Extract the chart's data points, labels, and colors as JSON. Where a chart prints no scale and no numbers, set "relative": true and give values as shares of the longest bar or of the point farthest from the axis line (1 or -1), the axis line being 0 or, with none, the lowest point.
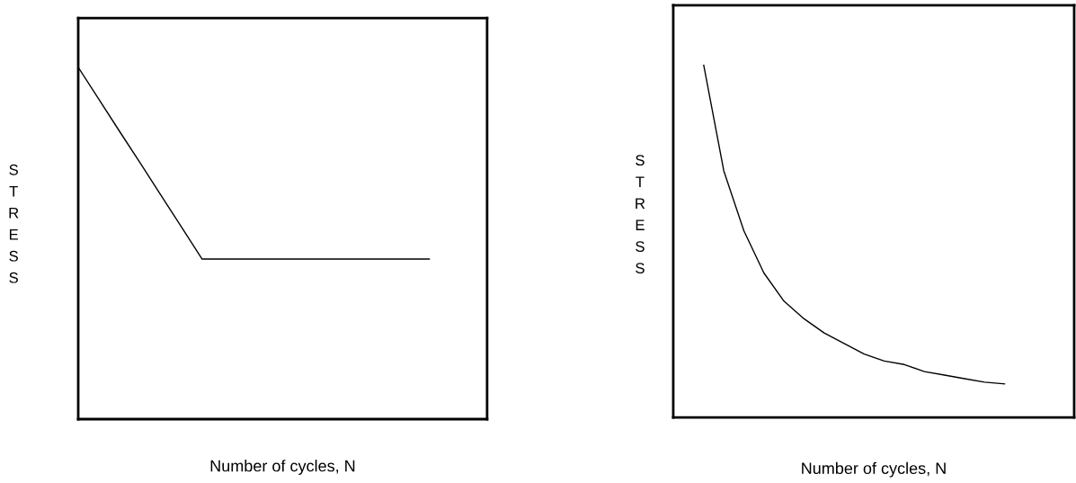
{
  "chart_data": [
    {
      "type": "line",
      "relative": true,
      "xlabel": "Number of cycles, N",
      "ylabel": "S\nT\nR\nE\nS\nS",
      "marker": "none",
      "line_style": "solid",
      "legend": false,
      "categories": [
        null,
        null,
        null,
        null,
        null,
        null,
        null,
        null,
        null,
        null,
        null,
        null,
        null,
        null,
        null,
        null,
        null,
        null
      ],
      "series": [
        {
          "color": "#000000",
          "values": [
            1,
            0.909,
            0.818,
            0.728,
            0.637,
            0.546,
            0.455,
            0.455,
            0.455,
            0.455,
            0.455,
            0.455,
            0.455,
            0.455,
            0.455,
            0.455,
            0.455,
            0.455
          ]
        }
      ]
    },
    {
      "type": "line",
      "relative": true,
      "xlabel": "Number of cycles, N",
      "ylabel": "S\nT\nR\nE\nS\nS",
      "marker": "none",
      "line_style": "solid",
      "legend": false,
      "categories": [
        null,
        null,
        null,
        null,
        null,
        null,
        null,
        null,
        null,
        null,
        null,
        null,
        null,
        null,
        null,
        null
      ],
      "series": [
        {
          "color": "#000000",
          "values": [
            1,
            0.7,
            0.53,
            0.41,
            0.33,
            0.28,
            0.24,
            0.21,
            0.18,
            0.16,
            0.15,
            0.13,
            0.12,
            0.11,
            0.1,
            0.095
          ]
        }
      ]
    }
  ]
}
